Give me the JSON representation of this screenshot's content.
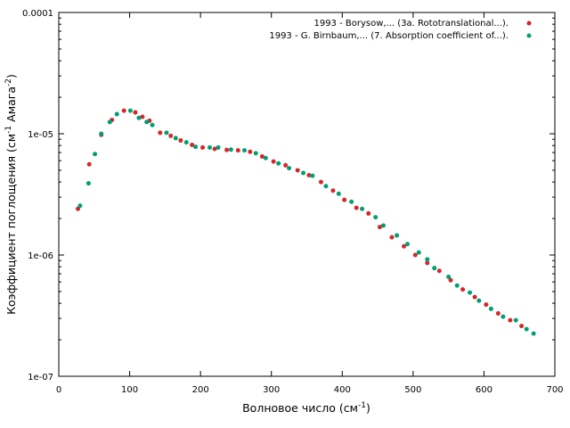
{
  "chart_data": {
    "type": "scatter",
    "title": "",
    "xlabel": {
      "main": "Волновое число (см",
      "sup": "-1",
      "tail": ")"
    },
    "ylabel": {
      "main": "Коэффициент поглощения (см",
      "sup1": "-1",
      "mid": " Амага",
      "sup2": "-2",
      "tail": ")"
    },
    "xlim": [
      0,
      700
    ],
    "ylim": [
      1e-07,
      0.0001
    ],
    "yscale": "log",
    "grid": false,
    "legend_position": "top-right",
    "x_ticks": [
      {
        "value": 0,
        "label": "0"
      },
      {
        "value": 100,
        "label": "100"
      },
      {
        "value": 200,
        "label": "200"
      },
      {
        "value": 300,
        "label": "300"
      },
      {
        "value": 400,
        "label": "400"
      },
      {
        "value": 500,
        "label": "500"
      },
      {
        "value": 600,
        "label": "600"
      },
      {
        "value": 700,
        "label": "700"
      }
    ],
    "y_ticks": [
      {
        "value": 1e-07,
        "label": "1e-07"
      },
      {
        "value": 1e-06,
        "label": "1e-06"
      },
      {
        "value": 1e-05,
        "label": "1e-05"
      },
      {
        "value": 0.0001,
        "label": "0.0001"
      }
    ],
    "series": [
      {
        "name": "1993 - Borysow,... (3a. Rototranslational...).",
        "color": "#d62728",
        "x": [
          27,
          43,
          60,
          75,
          92,
          108,
          118,
          128,
          143,
          158,
          172,
          188,
          203,
          220,
          237,
          253,
          270,
          287,
          303,
          320,
          337,
          353,
          370,
          387,
          403,
          420,
          437,
          453,
          470,
          487,
          503,
          520,
          537,
          553,
          570,
          587,
          603,
          620,
          637,
          653
        ],
        "y": [
          2.4e-06,
          5.6e-06,
          9.8e-06,
          1.3e-05,
          1.55e-05,
          1.5e-05,
          1.38e-05,
          1.28e-05,
          1.02e-05,
          9.6e-06,
          8.8e-06,
          8.1e-06,
          7.7e-06,
          7.5e-06,
          7.35e-06,
          7.3e-06,
          7.1e-06,
          6.5e-06,
          5.9e-06,
          5.5e-06,
          5e-06,
          4.55e-06,
          4e-06,
          3.4e-06,
          2.85e-06,
          2.45e-06,
          2.2e-06,
          1.7e-06,
          1.4e-06,
          1.18e-06,
          1e-06,
          8.6e-07,
          7.4e-07,
          6.2e-07,
          5.2e-07,
          4.5e-07,
          3.9e-07,
          3.3e-07,
          2.9e-07,
          2.6e-07
        ]
      },
      {
        "name": "1993 - G. Birnbaum,... (7. Absorption coefficient of...).",
        "color": "#009e73",
        "x": [
          30,
          42,
          51,
          60,
          72,
          82,
          101,
          113,
          124,
          132,
          152,
          165,
          180,
          193,
          213,
          225,
          243,
          262,
          278,
          292,
          310,
          325,
          345,
          358,
          377,
          395,
          413,
          428,
          447,
          458,
          477,
          492,
          508,
          520,
          530,
          550,
          562,
          580,
          593,
          610,
          627,
          645,
          660,
          670
        ],
        "y": [
          2.55e-06,
          3.9e-06,
          6.8e-06,
          1e-05,
          1.25e-05,
          1.45e-05,
          1.55e-05,
          1.35e-05,
          1.25e-05,
          1.18e-05,
          1.02e-05,
          9.2e-06,
          8.5e-06,
          7.8e-06,
          7.7e-06,
          7.7e-06,
          7.4e-06,
          7.3e-06,
          6.9e-06,
          6.3e-06,
          5.7e-06,
          5.2e-06,
          4.75e-06,
          4.5e-06,
          3.7e-06,
          3.2e-06,
          2.75e-06,
          2.4e-06,
          2.05e-06,
          1.75e-06,
          1.45e-06,
          1.23e-06,
          1.05e-06,
          9.2e-07,
          7.8e-07,
          6.6e-07,
          5.6e-07,
          4.9e-07,
          4.2e-07,
          3.6e-07,
          3.1e-07,
          2.9e-07,
          2.45e-07,
          2.25e-07
        ]
      }
    ]
  }
}
